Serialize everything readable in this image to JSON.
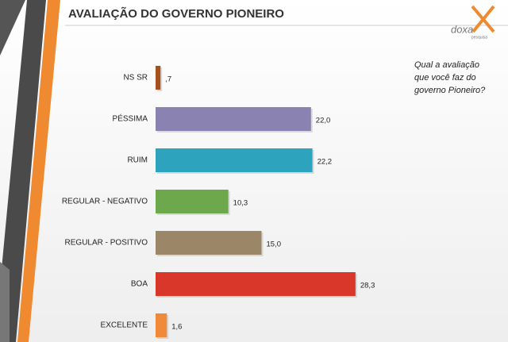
{
  "chart_data": {
    "type": "hbar",
    "title": "AVALIAÇÃO DO GOVERNO PIONEIRO",
    "categories": [
      "NS SR",
      "PÉSSIMA",
      "RUIM",
      "REGULAR - NEGATIVO",
      "REGULAR - POSITIVO",
      "BOA",
      "EXCELENTE"
    ],
    "values": [
      0.7,
      22.0,
      22.2,
      10.3,
      15.0,
      28.3,
      1.6
    ],
    "value_labels": [
      ",7",
      "22,0",
      "22,2",
      "10,3",
      "15,0",
      "28,3",
      "1,6"
    ],
    "colors": [
      "#a4501f",
      "#8a82b0",
      "#2ea3bd",
      "#6ea84c",
      "#9c8668",
      "#d8372a",
      "#f0893a"
    ],
    "question": [
      "Qual a avaliação",
      "que você faz do",
      "governo Pioneiro?"
    ],
    "logo": "doxa",
    "logo_sub": "pesquisa"
  }
}
